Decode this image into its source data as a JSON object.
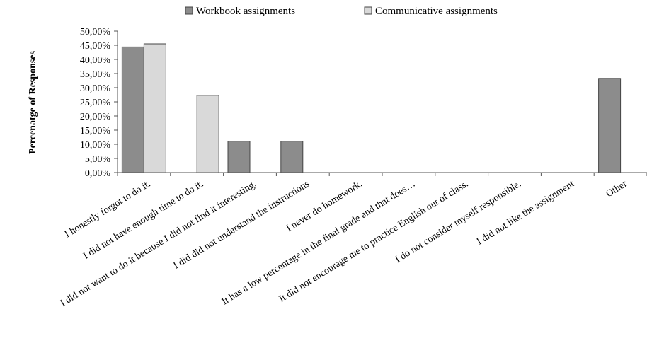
{
  "chart_data": {
    "type": "bar",
    "ylabel": "Percenatge of Responses",
    "ylim": [
      0,
      50
    ],
    "yticks": [
      "0,00%",
      "5,00%",
      "10,00%",
      "15,00%",
      "20,00%",
      "25,00%",
      "30,00%",
      "35,00%",
      "40,00%",
      "45,00%",
      "50,00%"
    ],
    "legend_position": "top",
    "grid": false,
    "categories": [
      "I honestly forgot to do it.",
      "I did not have enough time to do it.",
      "I did not want to do it because I did not find it interesting.",
      "I did did not understand the instructions",
      "I never do homework.",
      "It has a low percentage in the final grade and that does…",
      "It did not encourage me to practice English out of class.",
      "I do not consider myself responsible.",
      "I did not like the assignment",
      "Other"
    ],
    "series": [
      {
        "name": "Workbook assignments",
        "color": "#8c8c8c",
        "values": [
          44.4,
          0,
          11.1,
          11.1,
          0,
          0,
          0,
          0,
          0,
          33.3
        ]
      },
      {
        "name": "Communicative assignments",
        "color": "#d9d9d9",
        "values": [
          45.5,
          27.3,
          0,
          0,
          0,
          0,
          0,
          0,
          0,
          0
        ]
      }
    ]
  }
}
